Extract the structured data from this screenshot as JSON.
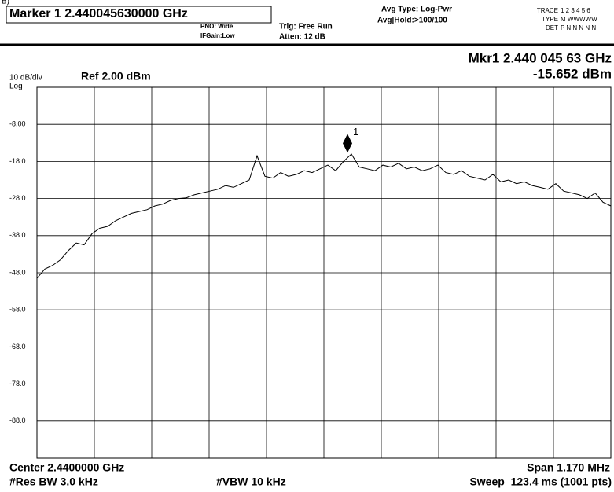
{
  "chart_data": {
    "type": "line",
    "corner_label": "B)",
    "marker_header": "Marker 1 2.440045630000 GHz",
    "pno": "PNO: Wide",
    "ifgain": "IFGain:Low",
    "trig": "Trig: Free Run",
    "atten": "Atten: 12 dB",
    "avg_type": "Avg Type: Log-Pwr",
    "avg_hold": "Avg|Hold:>100/100",
    "trace_row": [
      "TRACE",
      "1 2 3 4 5 6"
    ],
    "type_row": [
      "TYPE",
      "M WWWWW"
    ],
    "det_row": [
      "DET",
      "P N N N N N"
    ],
    "scale": "10 dB/div",
    "log": "Log",
    "ref": "Ref 2.00 dBm",
    "marker": {
      "readout": "Mkr1 2.440 045 63 GHz",
      "value": -15.652,
      "value_label": "-15.652 dBm",
      "label": "1"
    },
    "center": "Center 2.4400000 GHz",
    "span": "Span 1.170 MHz",
    "res_bw": "#Res BW 3.0 kHz",
    "vbw": "#VBW 10 kHz",
    "sweep": "Sweep  123.4 ms (1001 pts)",
    "ylim": [
      -98,
      2
    ],
    "yticks": [
      {
        "value": -8,
        "label": "-8.00"
      },
      {
        "value": -18,
        "label": "-18.0"
      },
      {
        "value": -28,
        "label": "-28.0"
      },
      {
        "value": -38,
        "label": "-38.0"
      },
      {
        "value": -48,
        "label": "-48.0"
      },
      {
        "value": -58,
        "label": "-58.0"
      },
      {
        "value": -68,
        "label": "-68.0"
      },
      {
        "value": -78,
        "label": "-78.0"
      },
      {
        "value": -88,
        "label": "-88.0"
      }
    ],
    "grid": true,
    "color": "#000000",
    "values": [
      -49.5,
      -47,
      -46,
      -44.5,
      -42,
      -40,
      -40.5,
      -37.5,
      -36,
      -35.5,
      -34,
      -33,
      -32,
      -31.5,
      -31,
      -30,
      -29.5,
      -28.5,
      -28,
      -27.8,
      -27,
      -26.5,
      -26,
      -25.5,
      -24.5,
      -25,
      -24,
      -23,
      -16.5,
      -22,
      -22.5,
      -21,
      -22,
      -21.5,
      -20.5,
      -21,
      -20,
      -19,
      -20.5,
      -18,
      -16,
      -19.5,
      -20,
      -20.5,
      -19,
      -19.5,
      -18.5,
      -20,
      -19.5,
      -20.5,
      -20,
      -19,
      -21,
      -21.5,
      -20.5,
      -22,
      -22.5,
      -23,
      -21.5,
      -23.5,
      -23,
      -24,
      -23.5,
      -24.5,
      -25,
      -25.5,
      -24,
      -26,
      -26.5,
      -27,
      -28,
      -26.5,
      -29,
      -30
    ]
  }
}
